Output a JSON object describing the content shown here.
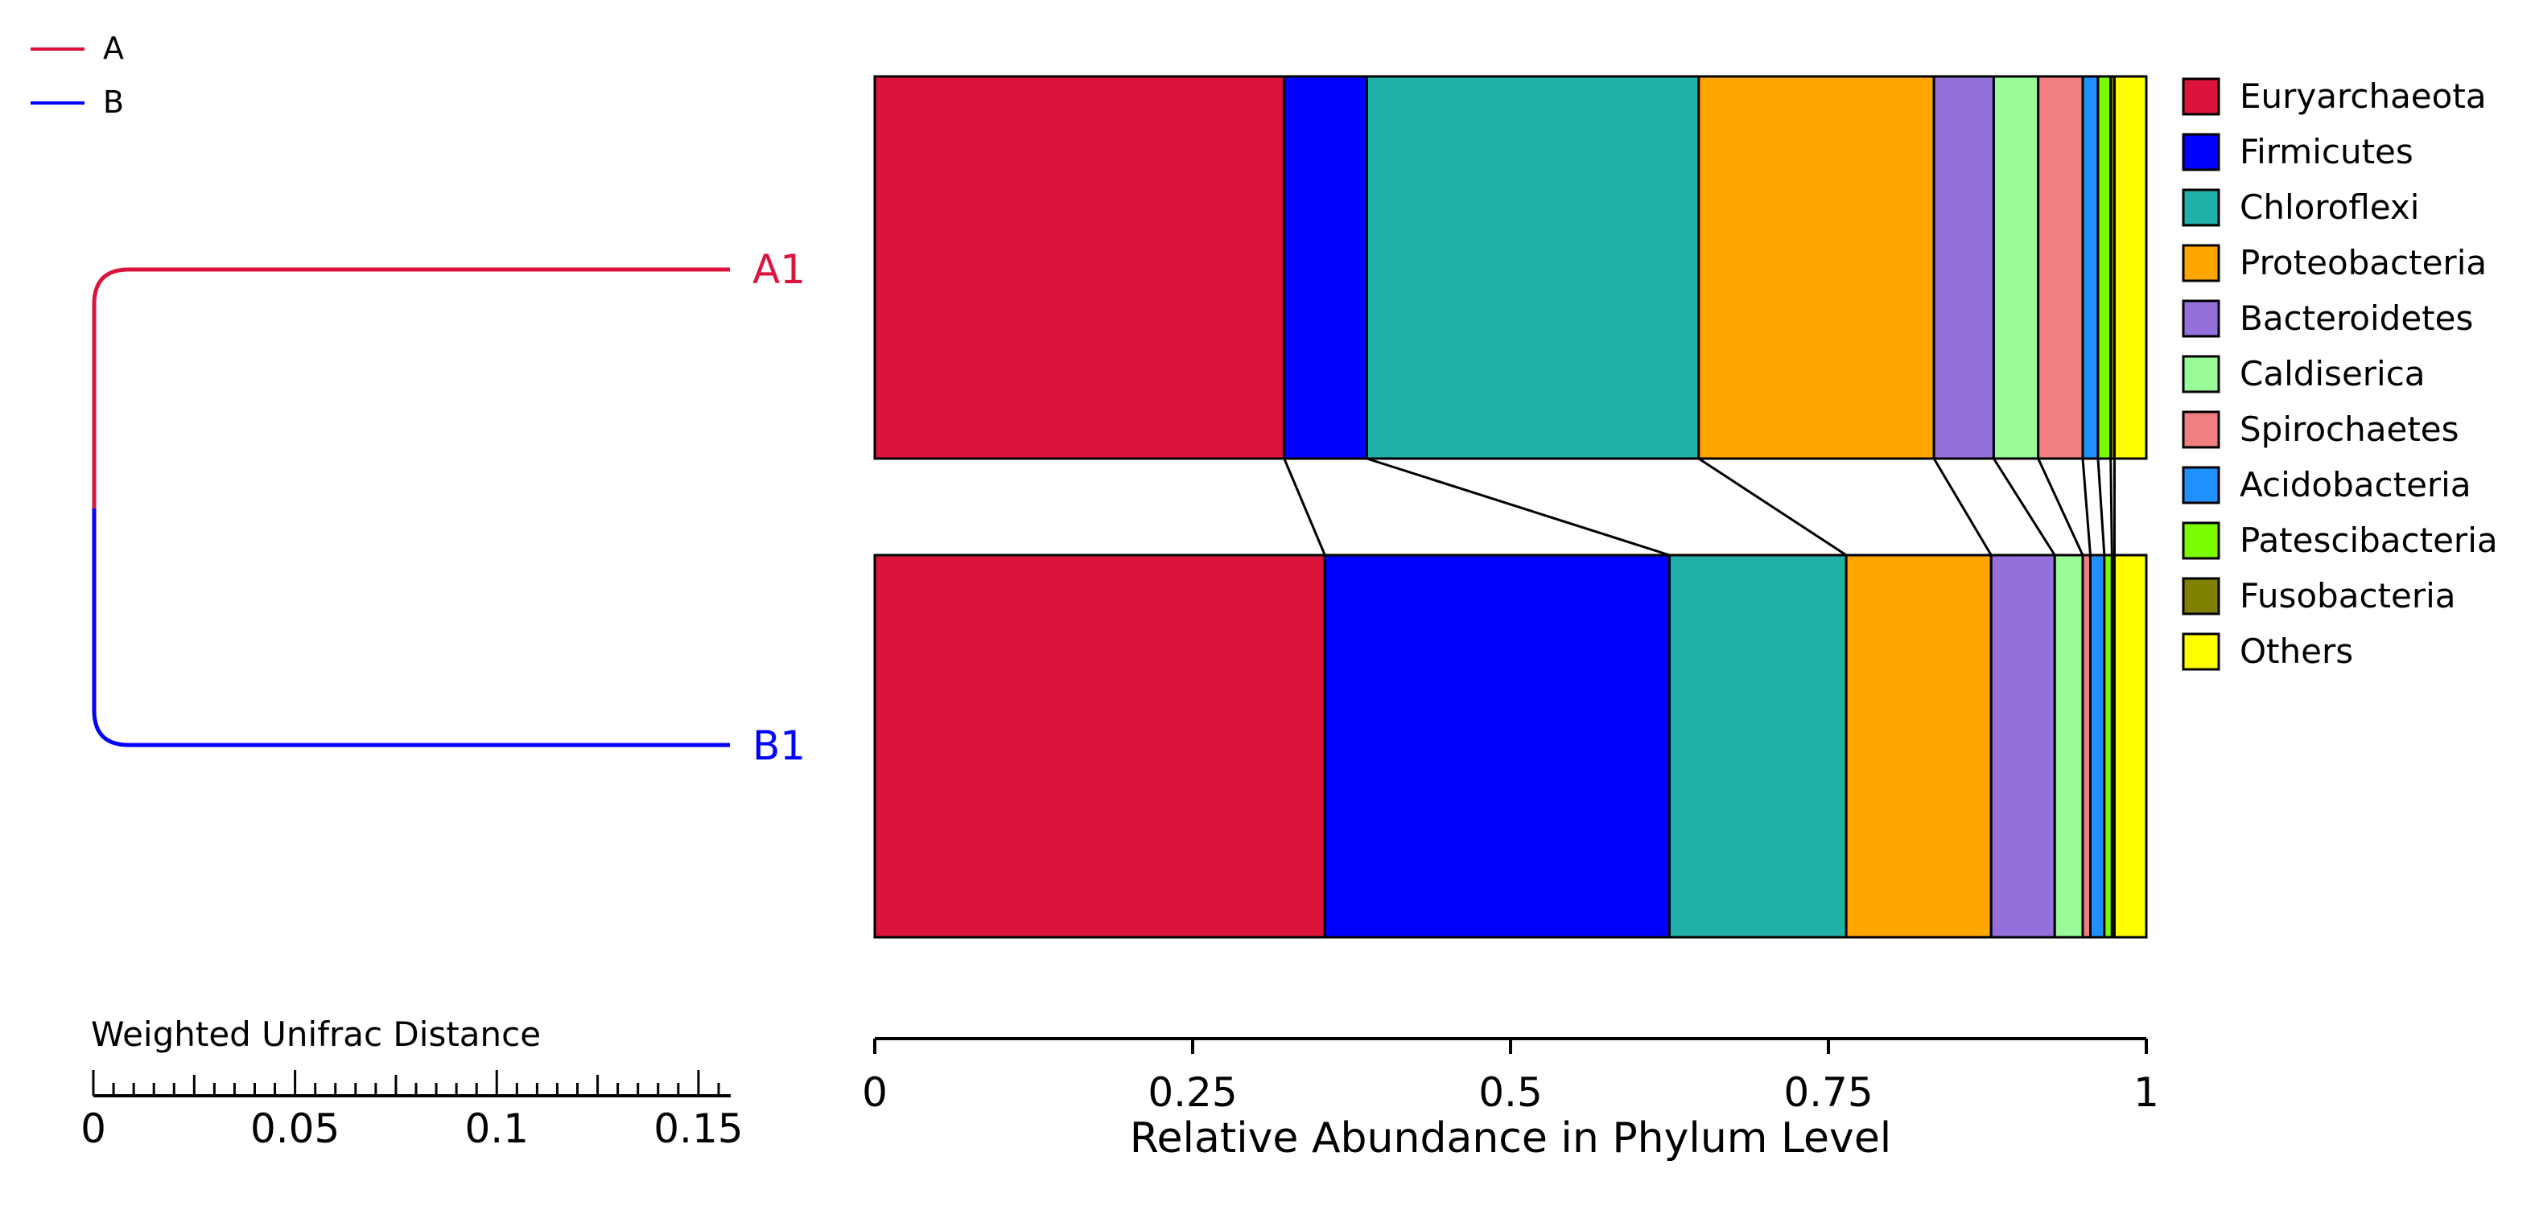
{
  "group_legend": [
    {
      "label": "A",
      "color": "#DC143C"
    },
    {
      "label": "B",
      "color": "#0000FF"
    }
  ],
  "tree": {
    "leaves": [
      {
        "label": "A1",
        "group": "A",
        "color": "#DC143C"
      },
      {
        "label": "B1",
        "group": "B",
        "color": "#0000FF"
      }
    ],
    "scale_title": "Weighted Unifrac Distance",
    "scale_ticks": [
      "0",
      "0.05",
      "0.1",
      "0.15"
    ],
    "scale_range": [
      0,
      0.158
    ]
  },
  "chart_data": {
    "type": "bar",
    "orientation": "horizontal",
    "stacked": true,
    "title": "",
    "xlabel": "Relative Abundance in Phylum Level",
    "xlim": [
      0,
      1
    ],
    "xticks": [
      "0",
      "0.25",
      "0.5",
      "0.75",
      "1"
    ],
    "legend_position": "right",
    "samples": [
      "A1",
      "B1"
    ],
    "series": [
      {
        "name": "Euryarchaeota",
        "color": "#DC143C",
        "values": [
          0.322,
          0.354
        ]
      },
      {
        "name": "Firmicutes",
        "color": "#0000FF",
        "values": [
          0.065,
          0.271
        ]
      },
      {
        "name": "Chloroflexi",
        "color": "#20B2AA",
        "values": [
          0.261,
          0.139
        ]
      },
      {
        "name": "Proteobacteria",
        "color": "#FFA500",
        "values": [
          0.185,
          0.114
        ]
      },
      {
        "name": "Bacteroidetes",
        "color": "#9370DB",
        "values": [
          0.047,
          0.05
        ]
      },
      {
        "name": "Caldiserica",
        "color": "#98FB98",
        "values": [
          0.035,
          0.022
        ]
      },
      {
        "name": "Spirochaetes",
        "color": "#F08080",
        "values": [
          0.035,
          0.006
        ]
      },
      {
        "name": "Acidobacteria",
        "color": "#1E90FF",
        "values": [
          0.012,
          0.011
        ]
      },
      {
        "name": "Patescibacteria",
        "color": "#7CFC00",
        "values": [
          0.01,
          0.006
        ]
      },
      {
        "name": "Fusobacteria",
        "color": "#808000",
        "values": [
          0.003,
          0.002
        ]
      },
      {
        "name": "Others",
        "color": "#FFFF00",
        "values": [
          0.025,
          0.025
        ]
      }
    ]
  }
}
